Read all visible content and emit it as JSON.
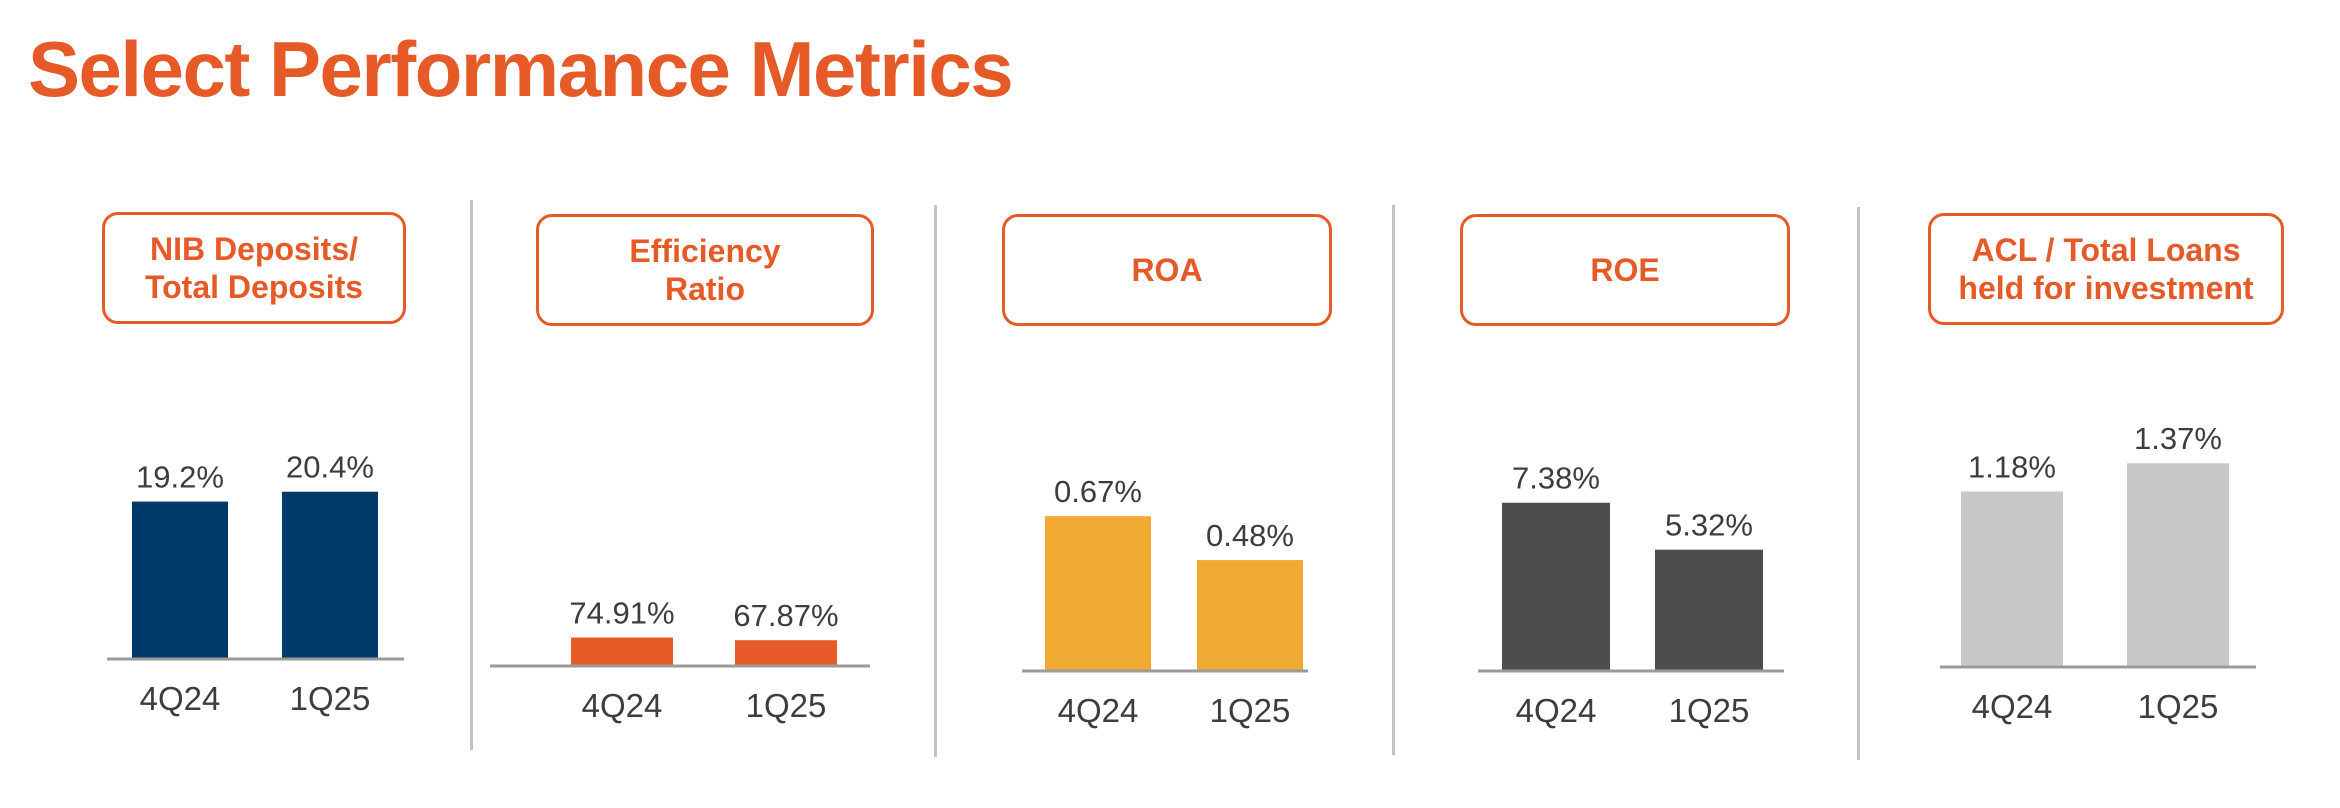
{
  "page": {
    "title": "Select Performance Metrics"
  },
  "chart_data": [
    {
      "type": "bar",
      "title_lines": [
        "NIB Deposits/",
        "Total Deposits"
      ],
      "categories": [
        "4Q24",
        "1Q25"
      ],
      "values": [
        19.2,
        20.4
      ],
      "value_labels": [
        "19.2%",
        "20.4%"
      ],
      "unit": "%",
      "color": "#003A6B",
      "xlabel": "",
      "ylabel": "",
      "ylim": [
        0,
        25
      ],
      "grid": false
    },
    {
      "type": "bar",
      "title_lines": [
        "Efficiency",
        "Ratio"
      ],
      "categories": [
        "4Q24",
        "1Q25"
      ],
      "values": [
        74.91,
        67.87
      ],
      "value_labels": [
        "74.91%",
        "67.87%"
      ],
      "unit": "%",
      "color": "#E55A26",
      "xlabel": "",
      "ylabel": "",
      "ylim": [
        0,
        1000
      ],
      "grid": false
    },
    {
      "type": "bar",
      "title_lines": [
        "ROA"
      ],
      "categories": [
        "4Q24",
        "1Q25"
      ],
      "values": [
        0.67,
        0.48
      ],
      "value_labels": [
        "0.67%",
        "0.48%"
      ],
      "unit": "%",
      "color": "#F0AA32",
      "xlabel": "",
      "ylabel": "",
      "ylim": [
        0,
        0.9
      ],
      "grid": false
    },
    {
      "type": "bar",
      "title_lines": [
        "ROE"
      ],
      "categories": [
        "4Q24",
        "1Q25"
      ],
      "values": [
        7.38,
        5.32
      ],
      "value_labels": [
        "7.38%",
        "5.32%"
      ],
      "unit": "%",
      "color": "#4D4D4D",
      "xlabel": "",
      "ylabel": "",
      "ylim": [
        0,
        10
      ],
      "grid": false
    },
    {
      "type": "bar",
      "title_lines": [
        "ACL / Total Loans",
        "held for investment"
      ],
      "categories": [
        "4Q24",
        "1Q25"
      ],
      "values": [
        1.18,
        1.37
      ],
      "value_labels": [
        "1.18%",
        "1.37%"
      ],
      "unit": "%",
      "color": "#C8C8C8",
      "xlabel": "",
      "ylabel": "",
      "ylim": [
        0,
        1.6
      ],
      "grid": false
    }
  ]
}
